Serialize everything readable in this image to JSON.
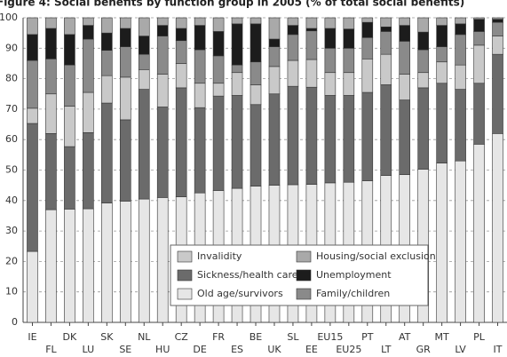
{
  "chart_data": {
    "type": "stacked_bar",
    "title": "Figure 4: Social benefits by function group in 2005 (% of total social benefits)",
    "categories": [
      "IE",
      "FL",
      "DK",
      "LU",
      "SK",
      "SE",
      "NL",
      "HU",
      "CZ",
      "DE",
      "FR",
      "ES",
      "BE",
      "UK",
      "SL",
      "EE",
      "EU15",
      "EU25",
      "PT",
      "LT",
      "AT",
      "GR",
      "MT",
      "LV",
      "PL",
      "IT"
    ],
    "series": [
      {
        "name": "Old age/survivors",
        "color": "#e6e6e6",
        "values": [
          23.3,
          37,
          37.2,
          37.3,
          39.2,
          39.8,
          40.5,
          41,
          41.2,
          42.5,
          43.3,
          44,
          44.7,
          45,
          45.2,
          45.3,
          45.8,
          46,
          46.5,
          48.2,
          48.5,
          50.3,
          52.3,
          53,
          58.5,
          62
        ]
      },
      {
        "name": "Sickness/health care",
        "color": "#6b6b6b",
        "values": [
          42,
          25,
          20.5,
          25,
          32.8,
          26.7,
          36,
          29.7,
          35.8,
          28,
          31,
          30.5,
          26.8,
          30,
          32.3,
          31.9,
          28.7,
          28.5,
          29,
          29.8,
          24.5,
          26.7,
          26.2,
          23.5,
          20,
          26
        ]
      },
      {
        "name": "Invalidity",
        "color": "#c9c9c9",
        "values": [
          5,
          13,
          13.3,
          13.2,
          9,
          14,
          6.5,
          10.8,
          8,
          8,
          4.2,
          7.5,
          6.5,
          9,
          8.5,
          9.1,
          7.5,
          7.5,
          11,
          10,
          8.5,
          5,
          7,
          8,
          12.5,
          6
        ]
      },
      {
        "name": "Family/children",
        "color": "#8a8a8a",
        "values": [
          15.7,
          11.5,
          13.5,
          17.5,
          8.3,
          10,
          5,
          12.5,
          7.5,
          11,
          9,
          2.5,
          7.5,
          6.5,
          8.5,
          9.4,
          8,
          8,
          7,
          7.5,
          10.8,
          7.5,
          5,
          10,
          4.5,
          4.5
        ]
      },
      {
        "name": "Unemployment",
        "color": "#1c1c1c",
        "values": [
          8.5,
          10,
          10,
          4.5,
          5.7,
          6,
          6,
          3.5,
          4,
          8,
          8,
          13.5,
          12.5,
          2.5,
          3,
          0.8,
          6.5,
          6.3,
          5,
          1.5,
          5.2,
          5.8,
          7,
          3.5,
          4,
          1
        ]
      },
      {
        "name": "Housing/social exclusion",
        "color": "#a9a9a9",
        "values": [
          5.5,
          3.5,
          5.5,
          2.5,
          5,
          3.5,
          6,
          2.5,
          3.5,
          2.5,
          4.5,
          2,
          2,
          7,
          2.5,
          3.5,
          3.5,
          3.7,
          1.5,
          3,
          2.5,
          4.7,
          2.5,
          2,
          0.5,
          0.5
        ]
      }
    ],
    "ylim": [
      0,
      100
    ],
    "yticks": [
      0,
      10,
      20,
      30,
      40,
      50,
      60,
      70,
      80,
      90,
      100
    ],
    "grid": true
  }
}
